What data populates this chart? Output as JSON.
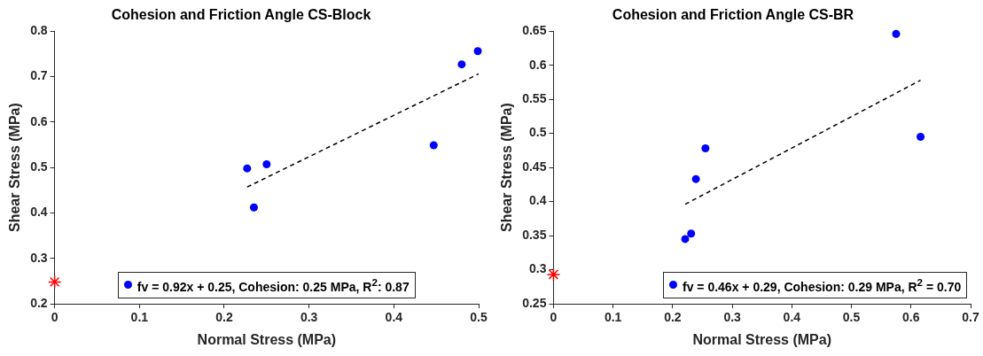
{
  "chart_data": [
    {
      "type": "scatter",
      "title": "Cohesion and Friction Angle CS-Block",
      "xlabel": "Normal Stress (MPa)",
      "ylabel": "Shear Stress (MPa)",
      "xlim": [
        0,
        0.5
      ],
      "xticks": [
        0,
        0.1,
        0.2,
        0.3,
        0.4,
        0.5
      ],
      "ylim": [
        0.2,
        0.8
      ],
      "yticks": [
        0.2,
        0.3,
        0.4,
        0.5,
        0.6,
        0.7,
        0.8
      ],
      "legend": "bottom",
      "series": [
        {
          "name": "fv = 0.92x + 0.25, Cohesion: 0.25 MPa, R$^{2}$: 0.87",
          "color": "#0000ff",
          "marker": "circle",
          "x": [
            0.227,
            0.235,
            0.25,
            0.447,
            0.48,
            0.499
          ],
          "values": [
            0.498,
            0.412,
            0.507,
            0.549,
            0.727,
            0.756
          ]
        },
        {
          "type": "line",
          "color": "#000000",
          "line_style": "dashed",
          "marker": "none",
          "x": [
            0.227,
            0.5
          ],
          "values": [
            0.457,
            0.706
          ]
        },
        {
          "color": "#ff0000",
          "marker": "cross",
          "x": [
            0
          ],
          "values": [
            0.248
          ]
        }
      ]
    },
    {
      "type": "scatter",
      "title": "Cohesion and Friction Angle CS-BR",
      "xlabel": "Normal Stress (MPa)",
      "ylabel": "Shear Stress (MPa)",
      "xlim": [
        0,
        0.7
      ],
      "xticks": [
        0,
        0.1,
        0.2,
        0.3,
        0.4,
        0.5,
        0.6,
        0.7
      ],
      "ylim": [
        0.25,
        0.65
      ],
      "yticks": [
        0.25,
        0.3,
        0.35,
        0.4,
        0.45,
        0.5,
        0.55,
        0.6,
        0.65
      ],
      "legend": "bottom right",
      "series": [
        {
          "name": "fv = 0.46x + 0.29, Cohesion: 0.29 MPa, R$^{2}$ = 0.70",
          "color": "#0000ff",
          "marker": "circle",
          "x": [
            0.221,
            0.231,
            0.239,
            0.255,
            0.575,
            0.616
          ],
          "values": [
            0.345,
            0.353,
            0.433,
            0.478,
            0.646,
            0.495
          ]
        },
        {
          "type": "line",
          "color": "#000000",
          "line_style": "dashed",
          "marker": "none",
          "x": [
            0.221,
            0.616
          ],
          "values": [
            0.396,
            0.578
          ]
        },
        {
          "color": "#ff0000",
          "marker": "cross",
          "x": [
            0
          ],
          "values": [
            0.293
          ]
        }
      ]
    }
  ]
}
